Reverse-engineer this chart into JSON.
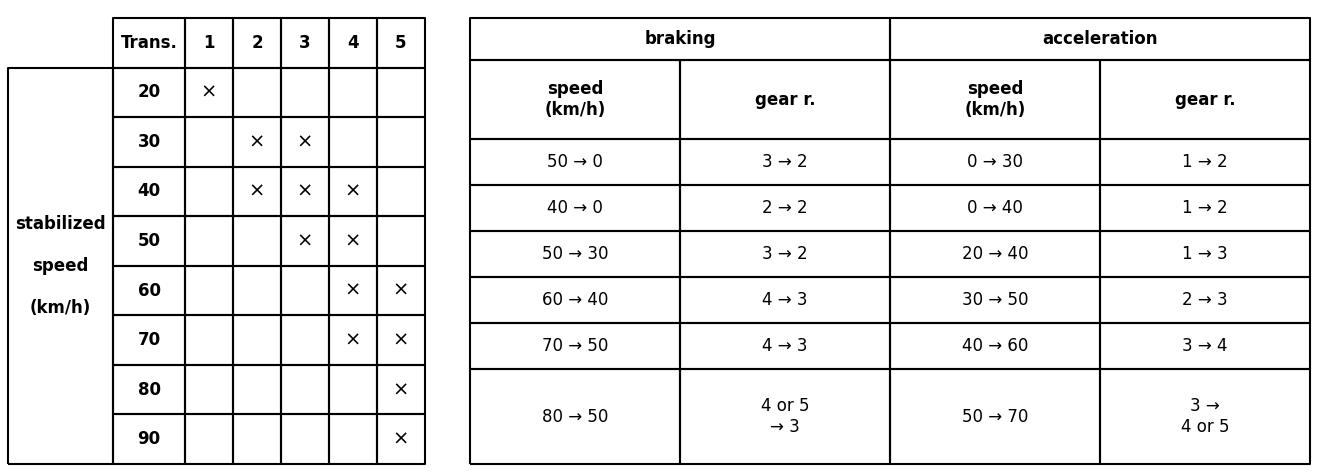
{
  "left_table": {
    "row_labels": [
      "20",
      "30",
      "40",
      "50",
      "60",
      "70",
      "80",
      "90"
    ],
    "left_label_lines": [
      "stabilized",
      "speed",
      "(km/h)"
    ],
    "marks": {
      "20": [
        1
      ],
      "30": [
        2,
        3
      ],
      "40": [
        2,
        3,
        4
      ],
      "50": [
        3,
        4
      ],
      "60": [
        4,
        5
      ],
      "70": [
        4,
        5
      ],
      "80": [
        5
      ],
      "90": [
        5
      ]
    }
  },
  "right_table": {
    "top_headers": [
      "braking",
      "acceleration"
    ],
    "sub_headers": [
      "speed\n(km/h)",
      "gear r.",
      "speed\n(km/h)",
      "gear r."
    ],
    "rows": [
      [
        "50 → 0",
        "3 → 2",
        "0 → 30",
        "1 → 2"
      ],
      [
        "40 → 0",
        "2 → 2",
        "0 → 40",
        "1 → 2"
      ],
      [
        "50 → 30",
        "3 → 2",
        "20 → 40",
        "1 → 3"
      ],
      [
        "60 → 40",
        "4 → 3",
        "30 → 50",
        "2 → 3"
      ],
      [
        "70 → 50",
        "4 → 3",
        "40 → 60",
        "3 → 4"
      ],
      [
        "80 → 50",
        "4 or 5\n→ 3",
        "50 → 70",
        "3 →\n4 or 5"
      ]
    ]
  },
  "fig_width": 13.18,
  "fig_height": 4.74,
  "dpi": 100,
  "font_size": 12,
  "bold_font_size": 12,
  "background": "#ffffff"
}
